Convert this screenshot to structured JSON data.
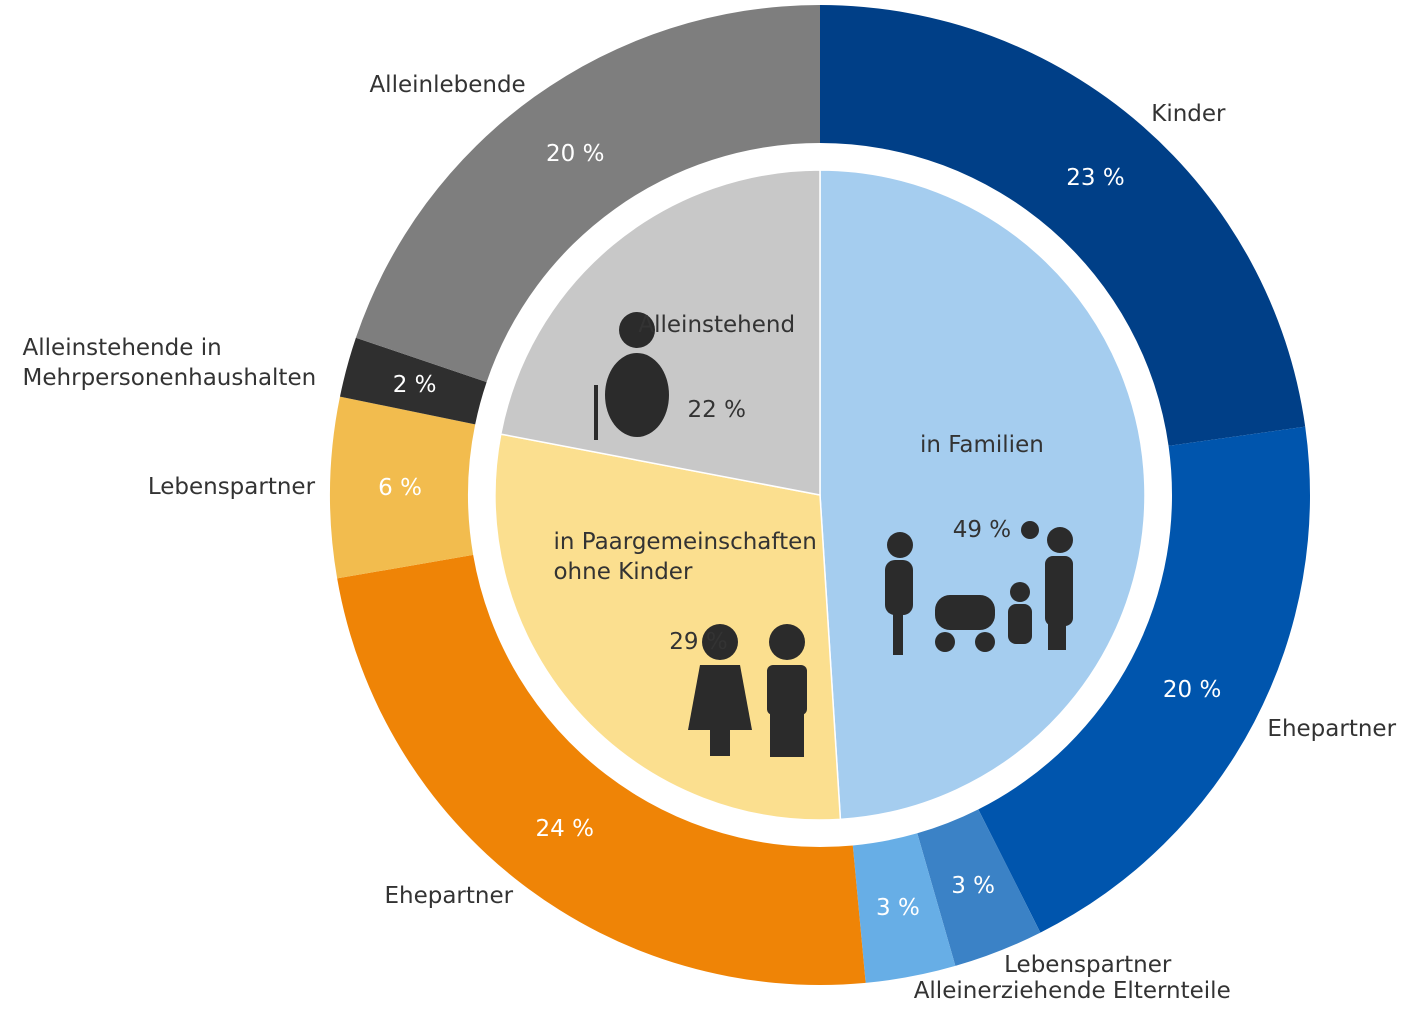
{
  "chart_data": [
    {
      "type": "pie",
      "categories": [
        "in Familien",
        "in Paargemeinschaften ohne Kinder",
        "Alleinstehend"
      ],
      "values": [
        49,
        29,
        22
      ],
      "value_labels": [
        "49 %",
        "29 %",
        "22 %"
      ],
      "colors": [
        "#a5cdef",
        "#fbdf8f",
        "#c8c8c8"
      ]
    },
    {
      "type": "donut",
      "categories": [
        "Kinder",
        "Ehepartner",
        "Lebenspartner",
        "Alleinerziehende Elternteile",
        "Ehepartner",
        "Lebenspartner",
        "Alleinstehende in Mehrpersonenhaushalten",
        "Alleinlebende"
      ],
      "values": [
        23,
        20,
        3,
        3,
        24,
        6,
        2,
        20
      ],
      "value_labels": [
        "23 %",
        "20 %",
        "3 %",
        "3 %",
        "24 %",
        "6 %",
        "2 %",
        "20 %"
      ],
      "colors": [
        "#003f87",
        "#0055ad",
        "#3b82c6",
        "#67aee6",
        "#ef8406",
        "#f2bc4e",
        "#2f2f2f",
        "#7e7e7e"
      ]
    }
  ]
}
